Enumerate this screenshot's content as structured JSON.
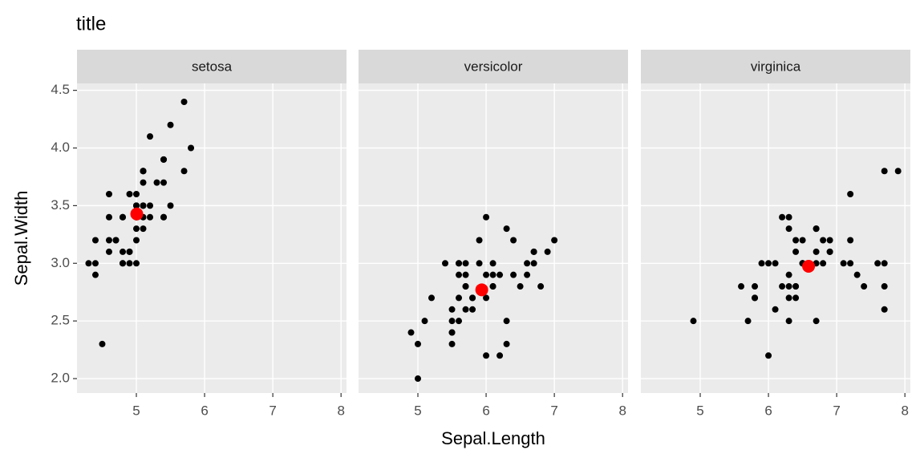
{
  "chart_data": {
    "type": "scatter",
    "title": "title",
    "x_label": "Sepal.Length",
    "y_label": "Sepal.Width",
    "xlim": [
      4.13,
      8.08
    ],
    "ylim": [
      1.875,
      4.56
    ],
    "xticks": [
      5,
      6,
      7,
      8
    ],
    "yticks": [
      {
        "value": 2,
        "label": "2.0"
      },
      2.5,
      {
        "value": 3,
        "label": "3.0"
      },
      3.5,
      {
        "value": 4,
        "label": "4.0"
      },
      4.5
    ],
    "grid": true,
    "facets": [
      {
        "name": "setosa",
        "series": [
          {
            "color": "#000000",
            "marker": "small",
            "x": [
              5.1,
              4.9,
              4.7,
              4.6,
              5.0,
              5.4,
              4.6,
              5.0,
              4.4,
              4.9,
              5.4,
              4.8,
              4.8,
              4.3,
              5.8,
              5.7,
              5.4,
              5.1,
              5.7,
              5.1,
              5.4,
              5.1,
              4.6,
              5.1,
              4.8,
              5.0,
              5.0,
              5.2,
              5.2,
              4.7,
              4.8,
              5.4,
              5.2,
              5.5,
              4.9,
              5.0,
              5.5,
              4.9,
              4.4,
              5.1,
              5.0,
              4.5,
              4.4,
              5.0,
              5.1,
              4.8,
              5.1,
              4.6,
              5.3,
              5.0
            ],
            "y": [
              3.5,
              3.0,
              3.2,
              3.1,
              3.6,
              3.9,
              3.4,
              3.4,
              2.9,
              3.1,
              3.7,
              3.4,
              3.0,
              3.0,
              4.0,
              4.4,
              3.9,
              3.5,
              3.8,
              3.8,
              3.4,
              3.7,
              3.6,
              3.3,
              3.4,
              3.0,
              3.4,
              3.5,
              3.4,
              3.2,
              3.1,
              3.4,
              4.1,
              4.2,
              3.1,
              3.2,
              3.5,
              3.6,
              3.0,
              3.4,
              3.5,
              2.3,
              3.2,
              3.5,
              3.8,
              3.0,
              3.8,
              3.2,
              3.7,
              3.3
            ]
          },
          {
            "color": "#ff0000",
            "marker": "large",
            "x": [
              5.006
            ],
            "y": [
              3.428
            ]
          }
        ]
      },
      {
        "name": "versicolor",
        "series": [
          {
            "color": "#000000",
            "marker": "small",
            "x": [
              7.0,
              6.4,
              6.9,
              5.5,
              6.5,
              5.7,
              6.3,
              4.9,
              6.6,
              5.2,
              5.0,
              5.9,
              6.0,
              6.1,
              5.6,
              6.7,
              5.6,
              5.8,
              6.2,
              5.6,
              5.9,
              6.1,
              6.3,
              6.1,
              6.4,
              6.6,
              6.8,
              6.7,
              6.0,
              5.7,
              5.5,
              5.5,
              5.8,
              6.0,
              5.4,
              6.0,
              6.7,
              6.3,
              5.6,
              5.5,
              5.5,
              6.1,
              5.8,
              5.0,
              5.6,
              5.7,
              5.7,
              6.2,
              5.1,
              5.7
            ],
            "y": [
              3.2,
              3.2,
              3.1,
              2.3,
              2.8,
              2.8,
              3.3,
              2.4,
              2.9,
              2.7,
              2.0,
              3.0,
              2.2,
              2.9,
              2.9,
              3.1,
              3.0,
              2.7,
              2.2,
              2.5,
              3.2,
              2.8,
              2.5,
              2.8,
              2.9,
              3.0,
              2.8,
              3.0,
              2.9,
              2.6,
              2.4,
              2.4,
              2.7,
              2.7,
              3.0,
              3.4,
              3.1,
              2.3,
              3.0,
              2.5,
              2.6,
              3.0,
              2.6,
              2.3,
              2.7,
              3.0,
              2.9,
              2.9,
              2.5,
              2.8
            ]
          },
          {
            "color": "#ff0000",
            "marker": "large",
            "x": [
              5.936
            ],
            "y": [
              2.77
            ]
          }
        ]
      },
      {
        "name": "virginica",
        "series": [
          {
            "color": "#000000",
            "marker": "small",
            "x": [
              6.3,
              5.8,
              7.1,
              6.3,
              6.5,
              7.6,
              4.9,
              7.3,
              6.7,
              7.2,
              6.5,
              6.4,
              6.8,
              5.7,
              5.8,
              6.4,
              6.5,
              7.7,
              7.7,
              6.0,
              6.9,
              5.6,
              7.7,
              6.3,
              6.7,
              7.2,
              6.2,
              6.1,
              6.4,
              7.2,
              7.4,
              7.9,
              6.4,
              6.3,
              6.1,
              7.7,
              6.3,
              6.4,
              6.0,
              6.9,
              6.7,
              6.9,
              5.8,
              6.8,
              6.7,
              6.7,
              6.3,
              6.5,
              6.2,
              5.9
            ],
            "y": [
              3.3,
              2.7,
              3.0,
              2.9,
              3.0,
              3.0,
              2.5,
              2.9,
              2.5,
              3.6,
              3.2,
              2.7,
              3.0,
              2.5,
              2.8,
              3.2,
              3.0,
              3.8,
              2.6,
              2.2,
              3.2,
              2.8,
              2.8,
              2.7,
              3.3,
              3.2,
              2.8,
              3.0,
              2.8,
              3.0,
              2.8,
              3.8,
              2.8,
              2.8,
              2.6,
              3.0,
              3.4,
              3.1,
              3.0,
              3.1,
              3.1,
              3.1,
              2.7,
              3.2,
              3.3,
              3.0,
              2.5,
              3.0,
              3.4,
              3.0
            ]
          },
          {
            "color": "#ff0000",
            "marker": "large",
            "x": [
              6.588
            ],
            "y": [
              2.974
            ]
          }
        ]
      }
    ]
  }
}
